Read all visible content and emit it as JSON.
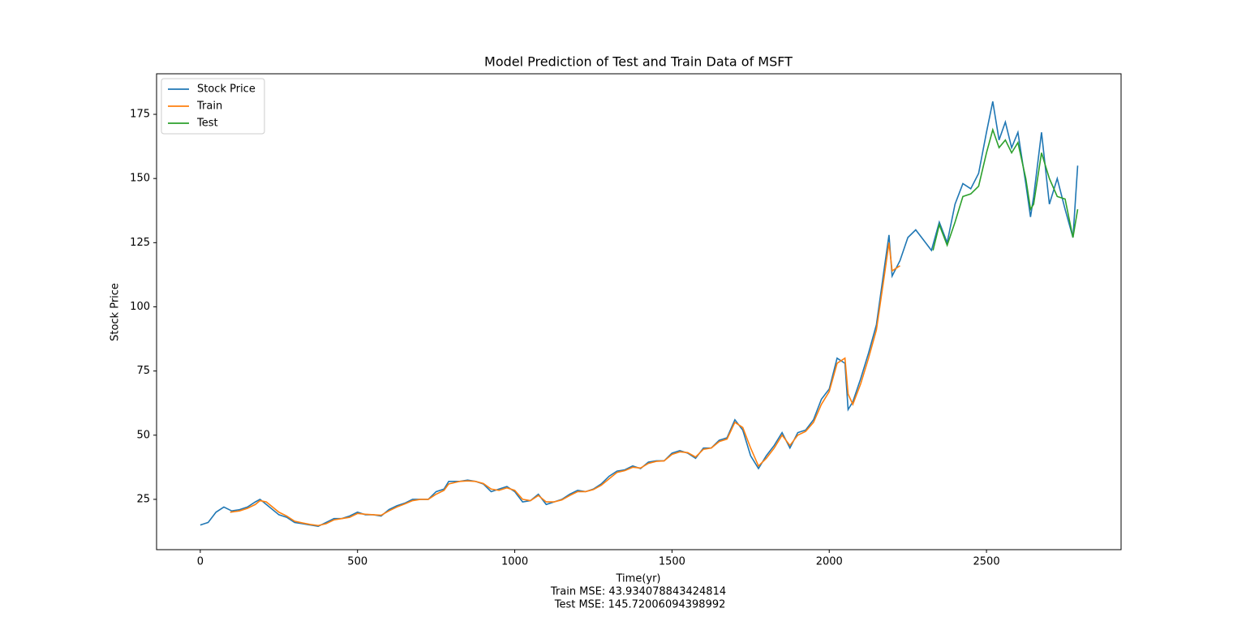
{
  "chart_data": {
    "type": "line",
    "title": "Model Prediction of Test and Train Data of MSFT",
    "ylabel": "Stock Price",
    "xlabel_lines": [
      "Time(yr)",
      "Train MSE: 43.934078843424814",
      " Test MSE: 145.72006094398992"
    ],
    "xlim": [
      -139,
      2928
    ],
    "ylim": [
      5.4,
      190.8
    ],
    "xticks": [
      0,
      500,
      1000,
      1500,
      2000,
      2500
    ],
    "yticks": [
      25,
      50,
      75,
      100,
      125,
      150,
      175
    ],
    "legend": "upper left",
    "series": [
      {
        "name": "Stock Price",
        "color": "#1f77b4",
        "x": [
          0,
          25,
          50,
          75,
          100,
          125,
          150,
          175,
          190,
          210,
          250,
          275,
          300,
          325,
          350,
          375,
          400,
          425,
          450,
          475,
          500,
          525,
          550,
          575,
          600,
          625,
          650,
          675,
          700,
          725,
          750,
          775,
          790,
          825,
          850,
          875,
          900,
          925,
          950,
          975,
          1000,
          1025,
          1050,
          1075,
          1100,
          1125,
          1150,
          1175,
          1200,
          1225,
          1250,
          1275,
          1300,
          1325,
          1350,
          1375,
          1400,
          1425,
          1450,
          1475,
          1500,
          1525,
          1550,
          1575,
          1600,
          1625,
          1650,
          1675,
          1700,
          1725,
          1750,
          1775,
          1800,
          1825,
          1850,
          1875,
          1900,
          1925,
          1950,
          1975,
          2000,
          2025,
          2050,
          2060,
          2075,
          2100,
          2125,
          2150,
          2175,
          2190,
          2200,
          2225,
          2250,
          2275,
          2300,
          2325,
          2350,
          2375,
          2400,
          2425,
          2450,
          2475,
          2500,
          2520,
          2540,
          2560,
          2580,
          2600,
          2625,
          2640,
          2650,
          2675,
          2700,
          2725,
          2750,
          2775,
          2790
        ],
        "values": [
          15,
          16,
          20,
          22,
          20.5,
          21,
          22,
          24,
          25,
          23,
          19,
          18,
          16,
          15.5,
          15,
          14.5,
          16,
          17.5,
          17.5,
          18.5,
          20,
          19,
          19,
          18.5,
          21,
          22.5,
          23.5,
          25,
          25,
          25,
          28,
          29,
          32,
          32,
          32.5,
          32,
          31,
          28,
          29,
          30,
          28,
          24,
          24.5,
          27,
          23,
          24,
          25,
          27,
          28.5,
          28,
          29,
          31,
          34,
          36,
          36.5,
          38,
          37,
          39.5,
          40,
          40,
          43,
          44,
          43,
          41,
          45,
          45,
          48,
          49,
          56,
          52,
          42,
          37,
          42,
          46,
          51,
          45,
          51,
          52,
          56,
          64,
          68,
          80,
          78,
          60,
          63,
          72,
          82,
          93,
          115,
          128,
          112,
          118,
          127,
          130,
          126,
          122,
          133,
          125,
          140,
          148,
          146,
          152,
          168,
          180,
          165,
          172,
          162,
          168,
          148,
          135,
          143,
          168,
          140,
          150,
          138,
          127,
          155
        ]
      },
      {
        "name": "Train",
        "color": "#ff7f0e",
        "x": [
          95,
          125,
          150,
          175,
          190,
          210,
          250,
          275,
          300,
          325,
          350,
          375,
          400,
          425,
          450,
          475,
          500,
          525,
          550,
          575,
          600,
          625,
          650,
          675,
          700,
          725,
          750,
          775,
          790,
          825,
          850,
          875,
          900,
          925,
          950,
          975,
          1000,
          1025,
          1050,
          1075,
          1100,
          1125,
          1150,
          1175,
          1200,
          1225,
          1250,
          1275,
          1300,
          1325,
          1350,
          1375,
          1400,
          1425,
          1450,
          1475,
          1500,
          1525,
          1550,
          1575,
          1600,
          1625,
          1650,
          1675,
          1700,
          1725,
          1750,
          1775,
          1800,
          1825,
          1850,
          1875,
          1900,
          1925,
          1950,
          1975,
          2000,
          2025,
          2050,
          2060,
          2075,
          2100,
          2125,
          2150,
          2175,
          2190,
          2200,
          2225
        ],
        "values": [
          20,
          20.5,
          21.5,
          23,
          24.5,
          24,
          20,
          18.5,
          16.5,
          15.8,
          15.2,
          14.8,
          15.5,
          17,
          17.5,
          18,
          19.5,
          19.2,
          19,
          18.8,
          20.5,
          22,
          23.2,
          24.5,
          25,
          25,
          27,
          28.5,
          31,
          32,
          32.2,
          32,
          31.2,
          29,
          28.5,
          29.5,
          28.5,
          25,
          24.5,
          26.5,
          24,
          24,
          24.8,
          26.5,
          28,
          28,
          28.8,
          30.5,
          33,
          35.5,
          36.2,
          37.5,
          37.2,
          39,
          39.8,
          40,
          42.5,
          43.5,
          43.2,
          41.5,
          44.5,
          45,
          47.5,
          48.5,
          55,
          53,
          45,
          38,
          41,
          45,
          50,
          46,
          50,
          51.5,
          55,
          62,
          67,
          78,
          80,
          66,
          62,
          70,
          80,
          91,
          112,
          125,
          114,
          116
        ]
      },
      {
        "name": "Test",
        "color": "#2ca02c",
        "x": [
          2330,
          2350,
          2375,
          2400,
          2425,
          2450,
          2475,
          2500,
          2520,
          2540,
          2560,
          2580,
          2600,
          2625,
          2640,
          2650,
          2675,
          2700,
          2725,
          2750,
          2775,
          2790
        ],
        "values": [
          122,
          132,
          124,
          133,
          143,
          144,
          147,
          160,
          169,
          162,
          165,
          160,
          164,
          150,
          138,
          140,
          160,
          150,
          143,
          142,
          127,
          138
        ]
      }
    ]
  }
}
